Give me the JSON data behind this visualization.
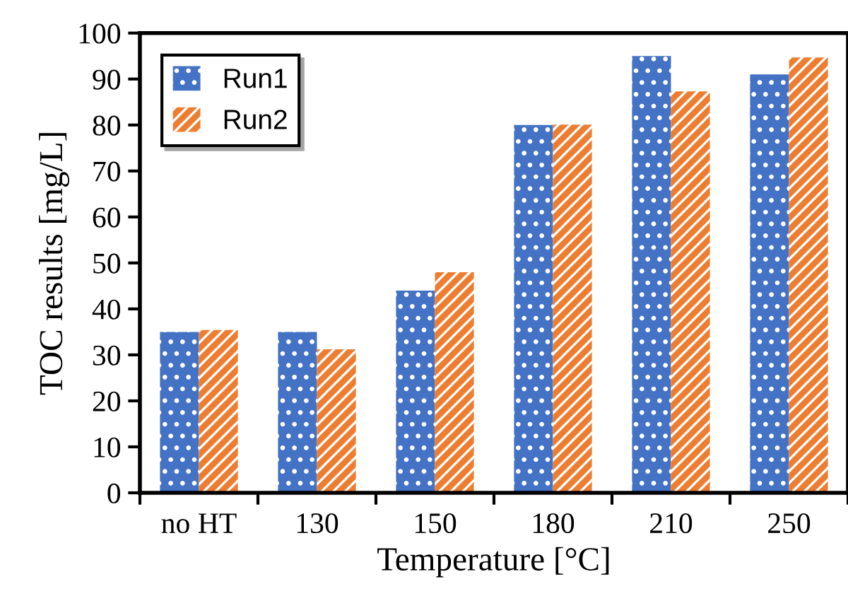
{
  "chart_data": {
    "type": "bar",
    "xlabel": "Temperature [°C]",
    "ylabel": "TOC results [mg/L]",
    "categories": [
      "no HT",
      "130",
      "150",
      "180",
      "210",
      "250"
    ],
    "series": [
      {
        "name": "Run1",
        "color": "#4472c4",
        "values": [
          35,
          35,
          44,
          80,
          95,
          91
        ]
      },
      {
        "name": "Run2",
        "color": "#ed7d31",
        "values": [
          35.4,
          31.2,
          48,
          80.1,
          87.3,
          94.7
        ]
      }
    ],
    "ylim": [
      0,
      100
    ],
    "yticks": [
      0,
      10,
      20,
      30,
      40,
      50,
      60,
      70,
      80,
      90,
      100
    ],
    "grid": false,
    "legend": "top left"
  }
}
